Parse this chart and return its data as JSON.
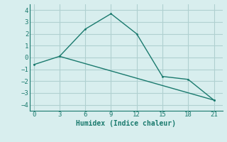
{
  "line1_x": [
    0,
    3,
    21
  ],
  "line1_y": [
    -0.6,
    0.1,
    -3.6
  ],
  "line2_x": [
    3,
    6,
    9,
    12,
    15,
    18,
    21
  ],
  "line2_y": [
    0.1,
    2.4,
    3.7,
    2.0,
    -1.6,
    -1.85,
    -3.6
  ],
  "color": "#1a7a6e",
  "xlabel": "Humidex (Indice chaleur)",
  "xlim": [
    -0.5,
    22
  ],
  "ylim": [
    -4.5,
    4.5
  ],
  "xticks": [
    0,
    3,
    6,
    9,
    12,
    15,
    18,
    21
  ],
  "yticks": [
    -4,
    -3,
    -2,
    -1,
    0,
    1,
    2,
    3,
    4
  ],
  "bg_color": "#d8eeee",
  "grid_color": "#b0d0d0",
  "font_family": "monospace",
  "tick_fontsize": 6.5,
  "xlabel_fontsize": 7
}
